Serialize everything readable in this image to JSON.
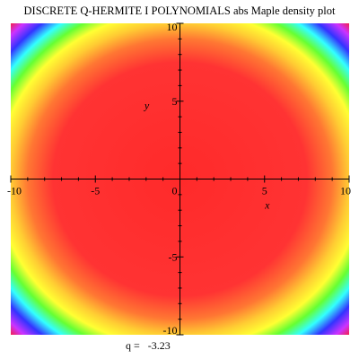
{
  "title": "DISCRETE Q-HERMITE I POLYNOMIALS abs Maple density plot",
  "caption": {
    "label": "q =",
    "value": "-3.23"
  },
  "chart_data": {
    "type": "heatmap",
    "title": "DISCRETE Q-HERMITE I POLYNOMIALS abs Maple density plot",
    "xlabel": "x",
    "ylabel": "y",
    "xlim": [
      -10,
      10
    ],
    "ylim": [
      -10,
      10
    ],
    "x_ticks": [
      -10,
      -5,
      0,
      5,
      10
    ],
    "y_ticks": [
      -10,
      -5,
      0,
      5,
      10
    ],
    "x_tick_labels": [
      "-10",
      "-5",
      "0",
      "5",
      "10"
    ],
    "y_tick_labels": [
      "-10",
      "-5",
      "0",
      "5",
      "10"
    ],
    "grid": false,
    "pattern": "radial",
    "center": [
      0,
      0
    ],
    "radial_colors": [
      {
        "r": 0.0,
        "color": "#ff2a2a"
      },
      {
        "r": 7.5,
        "color": "#ff3333"
      },
      {
        "r": 9.0,
        "color": "#ff7733"
      },
      {
        "r": 10.0,
        "color": "#ffcc33"
      },
      {
        "r": 10.8,
        "color": "#ffff33"
      },
      {
        "r": 11.5,
        "color": "#66ff33"
      },
      {
        "r": 12.2,
        "color": "#33ffff"
      },
      {
        "r": 12.9,
        "color": "#3333ff"
      },
      {
        "r": 13.6,
        "color": "#cc33ff"
      },
      {
        "r": 14.3,
        "color": "#ff1a1a"
      }
    ]
  }
}
